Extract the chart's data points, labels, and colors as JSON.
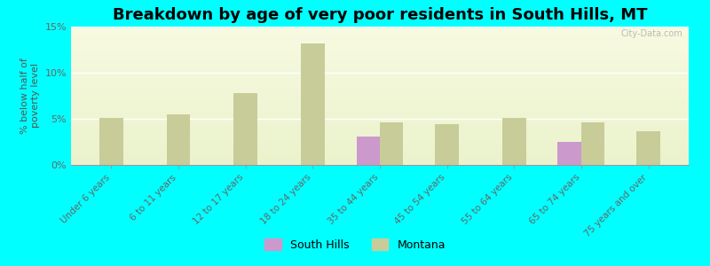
{
  "title": "Breakdown by age of very poor residents in South Hills, MT",
  "ylabel": "% below half of\npoverty level",
  "categories": [
    "Under 6 years",
    "6 to 11 years",
    "12 to 17 years",
    "18 to 24 years",
    "35 to 44 years",
    "45 to 54 years",
    "55 to 64 years",
    "65 to 74 years",
    "75 years and over"
  ],
  "south_hills": [
    null,
    null,
    null,
    null,
    3.1,
    null,
    null,
    2.5,
    null
  ],
  "montana": [
    5.1,
    5.5,
    7.8,
    13.2,
    4.6,
    4.4,
    5.1,
    4.6,
    3.7
  ],
  "south_hills_color": "#cc99cc",
  "montana_color": "#c8cc99",
  "background_color": "#00ffff",
  "ylim": [
    0,
    15
  ],
  "yticks": [
    0,
    5,
    10,
    15
  ],
  "ytick_labels": [
    "0%",
    "5%",
    "10%",
    "15%"
  ],
  "title_fontsize": 13,
  "bar_width": 0.35,
  "watermark": "City-Data.com",
  "label_south_hills": "South Hills",
  "label_montana": "Montana"
}
